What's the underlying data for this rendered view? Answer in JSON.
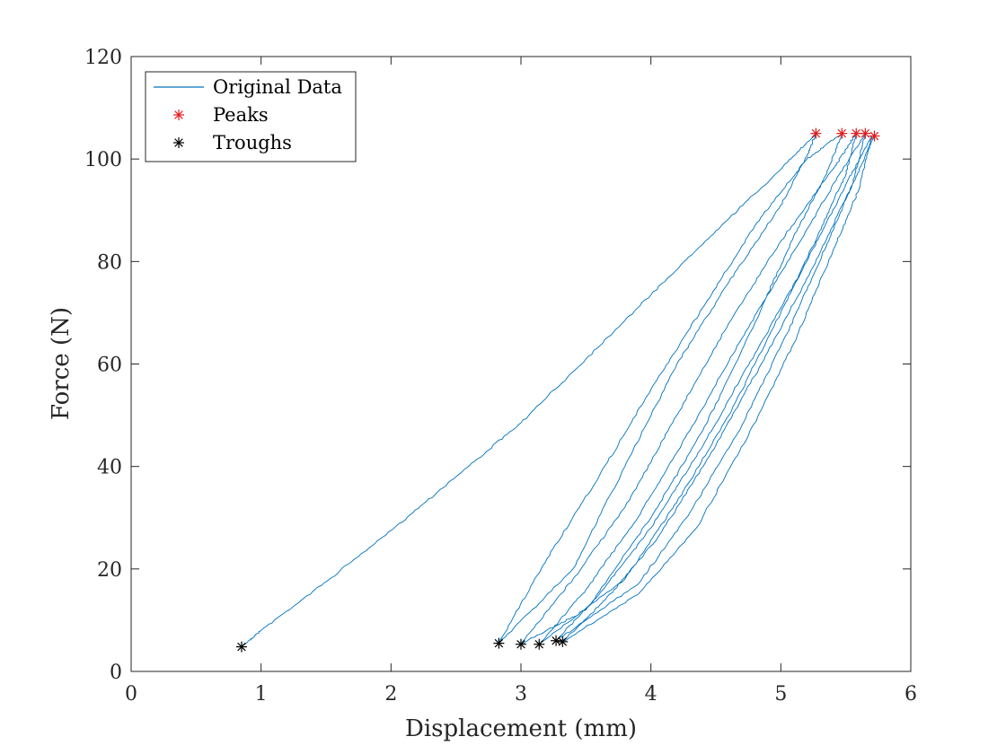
{
  "chart_data": {
    "type": "line",
    "xlabel": "Displacement (mm)",
    "ylabel": "Force (N)",
    "xlim": [
      0,
      6
    ],
    "ylim": [
      0,
      120
    ],
    "xticks": [
      0,
      1,
      2,
      3,
      4,
      5,
      6
    ],
    "yticks": [
      0,
      20,
      40,
      60,
      80,
      100,
      120
    ],
    "grid": false,
    "legend_position": "top-left",
    "colors": {
      "line": "#0072BD",
      "peaks": "#e41a1c",
      "troughs": "#000000"
    },
    "series": [
      {
        "name": "Original Data",
        "kind": "line",
        "points": [
          [
            0.85,
            4.8
          ],
          [
            1.0,
            8.0
          ],
          [
            1.5,
            17.5
          ],
          [
            2.0,
            27.5
          ],
          [
            2.5,
            38.0
          ],
          [
            3.0,
            48.5
          ],
          [
            3.5,
            61.0
          ],
          [
            4.0,
            73.5
          ],
          [
            4.5,
            86.0
          ],
          [
            5.0,
            98.0
          ],
          [
            5.27,
            105.0
          ],
          [
            5.2,
            100.5
          ],
          [
            5.0,
            91.0
          ],
          [
            4.6,
            76.0
          ],
          [
            4.2,
            60.0
          ],
          [
            3.8,
            40.0
          ],
          [
            3.4,
            20.0
          ],
          [
            2.83,
            5.5
          ],
          [
            3.2,
            22.0
          ],
          [
            3.6,
            38.0
          ],
          [
            4.0,
            55.0
          ],
          [
            4.4,
            71.0
          ],
          [
            4.8,
            87.0
          ],
          [
            5.2,
            100.0
          ],
          [
            5.47,
            105.0
          ],
          [
            5.35,
            97.0
          ],
          [
            5.1,
            85.0
          ],
          [
            4.8,
            68.0
          ],
          [
            4.4,
            47.0
          ],
          [
            4.0,
            30.0
          ],
          [
            3.5,
            12.0
          ],
          [
            3.0,
            5.3
          ],
          [
            3.4,
            18.0
          ],
          [
            3.8,
            32.0
          ],
          [
            4.2,
            50.0
          ],
          [
            4.6,
            68.0
          ],
          [
            5.0,
            84.0
          ],
          [
            5.4,
            98.0
          ],
          [
            5.58,
            105.0
          ],
          [
            5.5,
            97.0
          ],
          [
            5.3,
            86.0
          ],
          [
            5.0,
            70.0
          ],
          [
            4.6,
            50.0
          ],
          [
            4.2,
            33.0
          ],
          [
            3.8,
            18.0
          ],
          [
            3.14,
            5.3
          ],
          [
            3.5,
            16.0
          ],
          [
            3.9,
            30.0
          ],
          [
            4.3,
            47.0
          ],
          [
            4.7,
            65.0
          ],
          [
            5.1,
            82.0
          ],
          [
            5.45,
            97.0
          ],
          [
            5.65,
            105.0
          ],
          [
            5.55,
            95.0
          ],
          [
            5.35,
            83.0
          ],
          [
            5.05,
            66.0
          ],
          [
            4.7,
            48.0
          ],
          [
            4.3,
            31.0
          ],
          [
            3.9,
            17.0
          ],
          [
            3.27,
            6.0
          ],
          [
            3.6,
            15.0
          ],
          [
            4.0,
            28.0
          ],
          [
            4.4,
            44.0
          ],
          [
            4.8,
            62.0
          ],
          [
            5.2,
            80.0
          ],
          [
            5.5,
            95.0
          ],
          [
            5.7,
            104.5
          ],
          [
            5.6,
            94.0
          ],
          [
            5.4,
            82.0
          ],
          [
            5.1,
            64.0
          ],
          [
            4.75,
            46.0
          ],
          [
            4.35,
            28.0
          ],
          [
            3.9,
            15.0
          ],
          [
            3.32,
            5.8
          ],
          [
            3.65,
            14.0
          ],
          [
            4.05,
            26.0
          ],
          [
            4.45,
            42.0
          ],
          [
            4.85,
            60.0
          ],
          [
            5.25,
            79.0
          ],
          [
            5.55,
            95.0
          ],
          [
            5.72,
            104.5
          ]
        ]
      },
      {
        "name": "Peaks",
        "kind": "marker",
        "points": [
          [
            5.27,
            105.0
          ],
          [
            5.47,
            105.0
          ],
          [
            5.58,
            105.0
          ],
          [
            5.65,
            105.0
          ],
          [
            5.72,
            104.5
          ]
        ]
      },
      {
        "name": "Troughs",
        "kind": "marker",
        "points": [
          [
            0.85,
            4.8
          ],
          [
            2.83,
            5.5
          ],
          [
            3.0,
            5.3
          ],
          [
            3.14,
            5.3
          ],
          [
            3.27,
            6.0
          ],
          [
            3.32,
            5.8
          ]
        ]
      }
    ]
  }
}
